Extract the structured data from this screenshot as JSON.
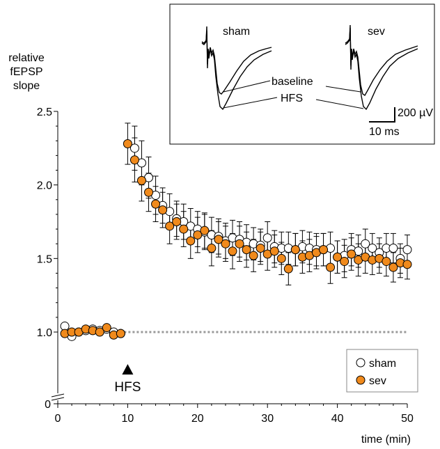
{
  "chart_data": {
    "type": "scatter",
    "ylabel": "relative\nfEPSP\nslope",
    "xlabel": "time (min)",
    "x_ticks": [
      0,
      10,
      20,
      30,
      40,
      50
    ],
    "y_ticks": [
      1.0,
      1.5,
      2.0,
      2.5
    ],
    "y_ticks_labels": [
      "1.0",
      "1.5",
      "2.0",
      "2.5"
    ],
    "y_zero_label": "0",
    "xlim": [
      0,
      50
    ],
    "ylim": [
      0.5,
      2.5
    ],
    "baseline_value": 1.0,
    "annotation": {
      "label": "HFS",
      "x": 10
    },
    "legend": {
      "position": "bottom-right"
    },
    "series": [
      {
        "name": "sham",
        "color": "#ffffff",
        "x": [
          1,
          2,
          3,
          4,
          5,
          6,
          7,
          8,
          9,
          11,
          12,
          13,
          14,
          15,
          16,
          17,
          18,
          19,
          20,
          21,
          22,
          23,
          24,
          25,
          26,
          27,
          28,
          29,
          30,
          31,
          32,
          33,
          34,
          35,
          36,
          37,
          38,
          39,
          40,
          41,
          42,
          43,
          44,
          45,
          46,
          47,
          48,
          49,
          50
        ],
        "y": [
          1.04,
          0.97,
          1.0,
          1.01,
          1.02,
          1.01,
          1.02,
          1.0,
          0.99,
          2.25,
          2.15,
          2.05,
          1.93,
          1.86,
          1.82,
          1.77,
          1.75,
          1.72,
          1.7,
          1.68,
          1.66,
          1.65,
          1.62,
          1.64,
          1.63,
          1.61,
          1.6,
          1.59,
          1.64,
          1.58,
          1.57,
          1.57,
          1.56,
          1.58,
          1.57,
          1.56,
          1.56,
          1.57,
          1.51,
          1.52,
          1.56,
          1.55,
          1.6,
          1.57,
          1.54,
          1.57,
          1.57,
          1.5,
          1.56
        ],
        "err": [
          0,
          0,
          0,
          0,
          0,
          0,
          0,
          0,
          0,
          0.15,
          0.15,
          0.14,
          0.13,
          0.12,
          0.12,
          0.12,
          0.12,
          0.12,
          0.12,
          0.12,
          0.12,
          0.12,
          0.12,
          0.12,
          0.12,
          0.12,
          0.11,
          0.11,
          0.11,
          0.11,
          0.11,
          0.11,
          0.11,
          0.11,
          0.11,
          0.11,
          0.11,
          0.11,
          0.11,
          0.11,
          0.11,
          0.11,
          0.1,
          0.1,
          0.1,
          0.1,
          0.1,
          0.1,
          0.1
        ]
      },
      {
        "name": "sev",
        "color": "#f08a1c",
        "x": [
          1,
          2,
          3,
          4,
          5,
          6,
          7,
          8,
          9,
          10,
          11,
          12,
          13,
          14,
          15,
          16,
          17,
          18,
          19,
          20,
          21,
          22,
          23,
          24,
          25,
          26,
          27,
          28,
          29,
          30,
          31,
          32,
          33,
          34,
          35,
          36,
          37,
          38,
          39,
          40,
          41,
          42,
          43,
          44,
          45,
          46,
          47,
          48,
          49,
          50
        ],
        "y": [
          0.99,
          1.0,
          1.0,
          1.02,
          1.01,
          1.0,
          1.03,
          0.98,
          0.99,
          2.28,
          2.17,
          2.03,
          1.95,
          1.87,
          1.83,
          1.72,
          1.75,
          1.7,
          1.62,
          1.66,
          1.69,
          1.57,
          1.63,
          1.6,
          1.55,
          1.6,
          1.56,
          1.52,
          1.57,
          1.53,
          1.55,
          1.5,
          1.43,
          1.56,
          1.51,
          1.52,
          1.54,
          1.56,
          1.44,
          1.51,
          1.48,
          1.53,
          1.49,
          1.51,
          1.49,
          1.5,
          1.48,
          1.44,
          1.47,
          1.46
        ],
        "err": [
          0,
          0,
          0,
          0,
          0,
          0,
          0,
          0,
          0,
          0.14,
          0.15,
          0.14,
          0.13,
          0.12,
          0.12,
          0.12,
          0.12,
          0.12,
          0.12,
          0.12,
          0.12,
          0.12,
          0.12,
          0.12,
          0.12,
          0.12,
          0.12,
          0.11,
          0.11,
          0.11,
          0.11,
          0.11,
          0.11,
          0.11,
          0.11,
          0.11,
          0.11,
          0.11,
          0.11,
          0.11,
          0.11,
          0.11,
          0.11,
          0.11,
          0.1,
          0.1,
          0.1,
          0.1,
          0.1,
          0.1
        ]
      }
    ]
  },
  "inset": {
    "sham_label": "sham",
    "sev_label": "sev",
    "baseline_label": "baseline",
    "hfs_label": "HFS",
    "scale_v_label": "200 µV",
    "scale_t_label": "10 ms"
  }
}
